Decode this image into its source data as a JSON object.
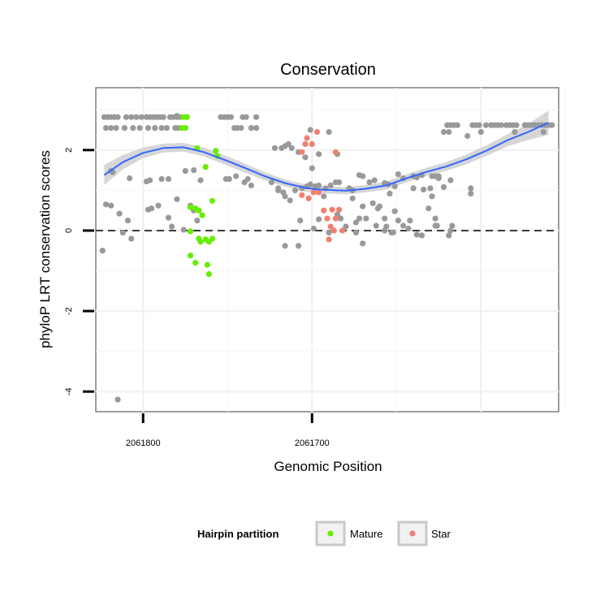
{
  "chart_data": {
    "type": "scatter",
    "title": "Conservation",
    "xlabel": "Genomic Position",
    "ylabel": "phyloP LRT conservation scores",
    "x_reversed": true,
    "xlim": [
      2061828,
      2061554
    ],
    "ylim": [
      -4.5,
      3.55
    ],
    "x_ticks": [
      2061800,
      2061700
    ],
    "x_tick_labels": [
      "2061800",
      "2061700"
    ],
    "y_ticks": [
      -4,
      -2,
      0,
      2
    ],
    "y_tick_labels": [
      "-4",
      "-2",
      "0",
      "2"
    ],
    "grid": true,
    "reference_line": {
      "y": 0,
      "style": "dashed"
    },
    "colors": {
      "Other": "#999999",
      "Mature": "#66ee00",
      "Star": "#f08070",
      "smooth": "#3366ff",
      "band": "#cccccc"
    },
    "legend": {
      "title": "Hairpin partition",
      "position": "bottom",
      "entries": [
        {
          "name": "Mature",
          "color": "#66ee00"
        },
        {
          "name": "Star",
          "color": "#f08070"
        }
      ]
    },
    "smooth": {
      "x": [
        2061823,
        2061812,
        2061800,
        2061788,
        2061776,
        2061764,
        2061752,
        2061740,
        2061728,
        2061716,
        2061704,
        2061696,
        2061680,
        2061668,
        2061656,
        2061644,
        2061632,
        2061620,
        2061608,
        2061596,
        2061584,
        2061572,
        2061560
      ],
      "y": [
        1.38,
        1.7,
        1.93,
        2.05,
        2.07,
        1.95,
        1.76,
        1.56,
        1.35,
        1.18,
        1.06,
        1.02,
        0.99,
        1.04,
        1.12,
        1.3,
        1.46,
        1.6,
        1.78,
        2.0,
        2.25,
        2.45,
        2.68
      ],
      "se": [
        0.25,
        0.18,
        0.13,
        0.11,
        0.11,
        0.11,
        0.11,
        0.11,
        0.1,
        0.09,
        0.09,
        0.09,
        0.09,
        0.09,
        0.1,
        0.1,
        0.1,
        0.11,
        0.12,
        0.13,
        0.15,
        0.2,
        0.3
      ]
    },
    "series": [
      {
        "name": "Mature",
        "points": [
          [
            2061776,
            2.82
          ],
          [
            2061774,
            2.82
          ],
          [
            2061777,
            2.55
          ],
          [
            2061775,
            2.55
          ],
          [
            2061768,
            2.05
          ],
          [
            2061763,
            1.58
          ],
          [
            2061757,
            1.98
          ],
          [
            2061756,
            1.85
          ],
          [
            2061759,
            0.74
          ],
          [
            2061769,
            0.55
          ],
          [
            2061772,
            0.58
          ],
          [
            2061767,
            0.5
          ],
          [
            2061765,
            0.38
          ],
          [
            2061772,
            -0.02
          ],
          [
            2061767,
            -0.2
          ],
          [
            2061766,
            -0.28
          ],
          [
            2061763,
            -0.22
          ],
          [
            2061759,
            -0.2
          ],
          [
            2061761,
            -0.28
          ],
          [
            2061772,
            -0.62
          ],
          [
            2061769,
            -0.8
          ],
          [
            2061762,
            -0.85
          ],
          [
            2061761,
            -1.08
          ]
        ]
      },
      {
        "name": "Star",
        "points": [
          [
            2061706,
            1.95
          ],
          [
            2061704,
            2.15
          ],
          [
            2061703,
            2.3
          ],
          [
            2061700,
            2.15
          ],
          [
            2061697,
            2.45
          ],
          [
            2061686,
            1.95
          ],
          [
            2061706,
            0.88
          ],
          [
            2061702,
            0.8
          ],
          [
            2061699,
            0.95
          ],
          [
            2061696,
            0.95
          ],
          [
            2061693,
            0.5
          ],
          [
            2061688,
            0.52
          ],
          [
            2061686,
            0.3
          ],
          [
            2061684,
            0.52
          ],
          [
            2061691,
            0.3
          ],
          [
            2061689,
            0.1
          ],
          [
            2061687,
            0.0
          ],
          [
            2061682,
            0.0
          ],
          [
            2061690,
            -0.22
          ]
        ]
      },
      {
        "name": "Other",
        "points": [
          [
            2061823,
            2.82
          ],
          [
            2061821,
            2.82
          ],
          [
            2061819,
            2.82
          ],
          [
            2061817,
            2.82
          ],
          [
            2061815,
            2.82
          ],
          [
            2061810,
            2.82
          ],
          [
            2061807,
            2.82
          ],
          [
            2061804,
            2.82
          ],
          [
            2061801,
            2.82
          ],
          [
            2061798,
            2.82
          ],
          [
            2061796,
            2.82
          ],
          [
            2061794,
            2.82
          ],
          [
            2061792,
            2.82
          ],
          [
            2061790,
            2.82
          ],
          [
            2061788,
            2.82
          ],
          [
            2061784,
            2.82
          ],
          [
            2061782,
            2.82
          ],
          [
            2061780,
            2.82
          ],
          [
            2061778,
            2.82
          ],
          [
            2061754,
            2.82
          ],
          [
            2061752,
            2.82
          ],
          [
            2061750,
            2.82
          ],
          [
            2061748,
            2.82
          ],
          [
            2061741,
            2.82
          ],
          [
            2061739,
            2.82
          ],
          [
            2061822,
            2.55
          ],
          [
            2061819,
            2.55
          ],
          [
            2061816,
            2.55
          ],
          [
            2061811,
            2.55
          ],
          [
            2061806,
            2.55
          ],
          [
            2061802,
            2.55
          ],
          [
            2061797,
            2.55
          ],
          [
            2061793,
            2.55
          ],
          [
            2061789,
            2.55
          ],
          [
            2061786,
            2.55
          ],
          [
            2061781,
            2.55
          ],
          [
            2061779,
            2.55
          ],
          [
            2061746,
            2.55
          ],
          [
            2061744,
            2.55
          ],
          [
            2061742,
            2.55
          ],
          [
            2061736,
            2.55
          ],
          [
            2061733,
            2.55
          ],
          [
            2061620,
            2.62
          ],
          [
            2061618,
            2.62
          ],
          [
            2061616,
            2.62
          ],
          [
            2061614,
            2.62
          ],
          [
            2061605,
            2.62
          ],
          [
            2061603,
            2.62
          ],
          [
            2061601,
            2.62
          ],
          [
            2061597,
            2.62
          ],
          [
            2061594,
            2.62
          ],
          [
            2061592,
            2.62
          ],
          [
            2061590,
            2.62
          ],
          [
            2061588,
            2.62
          ],
          [
            2061585,
            2.62
          ],
          [
            2061583,
            2.62
          ],
          [
            2061581,
            2.62
          ],
          [
            2061579,
            2.62
          ],
          [
            2061574,
            2.62
          ],
          [
            2061572,
            2.62
          ],
          [
            2061570,
            2.62
          ],
          [
            2061568,
            2.62
          ],
          [
            2061566,
            2.62
          ],
          [
            2061564,
            2.62
          ],
          [
            2061562,
            2.62
          ],
          [
            2061560,
            2.62
          ],
          [
            2061558,
            2.62
          ],
          [
            2061622,
            2.45
          ],
          [
            2061619,
            2.45
          ],
          [
            2061608,
            2.35
          ],
          [
            2061600,
            2.45
          ],
          [
            2061580,
            2.45
          ],
          [
            2061563,
            2.45
          ],
          [
            2061780,
            2.85
          ],
          [
            2061733,
            2.82
          ],
          [
            2061819,
            1.48
          ],
          [
            2061818,
            1.45
          ],
          [
            2061808,
            1.3
          ],
          [
            2061798,
            1.22
          ],
          [
            2061796,
            1.25
          ],
          [
            2061789,
            1.28
          ],
          [
            2061785,
            1.28
          ],
          [
            2061775,
            1.48
          ],
          [
            2061770,
            1.5
          ],
          [
            2061766,
            1.25
          ],
          [
            2061751,
            1.28
          ],
          [
            2061749,
            1.28
          ],
          [
            2061745,
            1.35
          ],
          [
            2061740,
            1.2
          ],
          [
            2061738,
            1.28
          ],
          [
            2061736,
            1.12
          ],
          [
            2061722,
            2.05
          ],
          [
            2061718,
            2.05
          ],
          [
            2061716,
            2.1
          ],
          [
            2061714,
            2.15
          ],
          [
            2061712,
            2.05
          ],
          [
            2061708,
            1.95
          ],
          [
            2061704,
            1.82
          ],
          [
            2061700,
            1.55
          ],
          [
            2061701,
            2.5
          ],
          [
            2061696,
            1.9
          ],
          [
            2061690,
            2.45
          ],
          [
            2061685,
            1.9
          ],
          [
            2061703,
            1.1
          ],
          [
            2061701,
            1.15
          ],
          [
            2061698,
            1.1
          ],
          [
            2061696,
            1.12
          ],
          [
            2061692,
            1.05
          ],
          [
            2061689,
            1.12
          ],
          [
            2061686,
            1.2
          ],
          [
            2061684,
            1.2
          ],
          [
            2061678,
            1.05
          ],
          [
            2061676,
            1.0
          ],
          [
            2061672,
            1.38
          ],
          [
            2061670,
            1.35
          ],
          [
            2061666,
            1.2
          ],
          [
            2061663,
            1.25
          ],
          [
            2061657,
            1.18
          ],
          [
            2061655,
            1.15
          ],
          [
            2061651,
            1.1
          ],
          [
            2061649,
            1.4
          ],
          [
            2061646,
            1.3
          ],
          [
            2061640,
            1.35
          ],
          [
            2061638,
            1.32
          ],
          [
            2061635,
            1.38
          ],
          [
            2061629,
            1.35
          ],
          [
            2061627,
            1.35
          ],
          [
            2061625,
            1.35
          ],
          [
            2061618,
            1.25
          ],
          [
            2061724,
            1.2
          ],
          [
            2061720,
            1.05
          ],
          [
            2061716,
            0.85
          ],
          [
            2061713,
            0.75
          ],
          [
            2061710,
            1.0
          ],
          [
            2061706,
            1.05
          ],
          [
            2061693,
            0.85
          ],
          [
            2061676,
            0.8
          ],
          [
            2061670,
            0.6
          ],
          [
            2061668,
            0.3
          ],
          [
            2061664,
            0.68
          ],
          [
            2061661,
            0.55
          ],
          [
            2061657,
            0.3
          ],
          [
            2061654,
            0.92
          ],
          [
            2061651,
            0.48
          ],
          [
            2061649,
            0.25
          ],
          [
            2061646,
            0.12
          ],
          [
            2061643,
            0.05
          ],
          [
            2061642,
            0.25
          ],
          [
            2061638,
            -0.1
          ],
          [
            2061635,
            -0.12
          ],
          [
            2061631,
            0.55
          ],
          [
            2061629,
            0.85
          ],
          [
            2061627,
            0.3
          ],
          [
            2061625,
            1.3
          ],
          [
            2061622,
            1.08
          ],
          [
            2061606,
            1.05
          ],
          [
            2061606,
            0.92
          ],
          [
            2061720,
            1.0
          ],
          [
            2061717,
            0.95
          ],
          [
            2061685,
            0.4
          ],
          [
            2061683,
            0.3
          ],
          [
            2061680,
            0.1
          ],
          [
            2061699,
            0.05
          ],
          [
            2061696,
            0.28
          ],
          [
            2061690,
            -0.05
          ],
          [
            2061674,
            -0.05
          ],
          [
            2061672,
            0.3
          ],
          [
            2061662,
            0.12
          ],
          [
            2061657,
            0.0
          ],
          [
            2061653,
            -0.05
          ],
          [
            2061652,
            -0.05
          ],
          [
            2061656,
            0.1
          ],
          [
            2061627,
            0.12
          ],
          [
            2061626,
            0.12
          ],
          [
            2061618,
            0.0
          ],
          [
            2061617,
            0.12
          ],
          [
            2061619,
            -0.12
          ],
          [
            2061824,
            -0.5
          ],
          [
            2061822,
            0.65
          ],
          [
            2061819,
            0.62
          ],
          [
            2061814,
            0.42
          ],
          [
            2061812,
            -0.05
          ],
          [
            2061809,
            0.25
          ],
          [
            2061807,
            -0.2
          ],
          [
            2061797,
            0.52
          ],
          [
            2061795,
            0.55
          ],
          [
            2061791,
            0.62
          ],
          [
            2061785,
            0.32
          ],
          [
            2061780,
            0.78
          ],
          [
            2061776,
            0.02
          ],
          [
            2061772,
            0.62
          ],
          [
            2061770,
            0.5
          ],
          [
            2061768,
            0.25
          ],
          [
            2061783,
            0.1
          ],
          [
            2061708,
            -0.38
          ],
          [
            2061716,
            -0.38
          ],
          [
            2061707,
            0.25
          ],
          [
            2061670,
            -0.32
          ],
          [
            2061674,
            0.2
          ],
          [
            2061660,
            0.6
          ],
          [
            2061640,
            1.05
          ],
          [
            2061634,
            1.02
          ],
          [
            2061630,
            1.05
          ],
          [
            2061815,
            -4.2
          ]
        ]
      }
    ]
  }
}
